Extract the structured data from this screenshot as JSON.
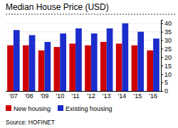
{
  "chart_data": {
    "type": "bar",
    "title": "Median House Price (USD)",
    "categories": [
      "'07",
      "'08",
      "'09",
      "'10",
      "'11",
      "'12",
      "'13",
      "'14",
      "'15",
      "'16"
    ],
    "series": [
      {
        "name": "New housing",
        "color": "#cc0000",
        "values": [
          27,
          27,
          24,
          26,
          28,
          27,
          29,
          28,
          27,
          24
        ]
      },
      {
        "name": "Existing housing",
        "color": "#1a2dcc",
        "values": [
          36,
          33,
          29,
          34,
          37,
          34,
          37,
          40,
          35,
          31
        ]
      }
    ],
    "ylim": [
      0,
      42
    ],
    "yticks": [
      0,
      5,
      10,
      15,
      20,
      25,
      30,
      35,
      40
    ],
    "grid": true,
    "legend": "bottom",
    "annotations": [
      "Source: HOFINET"
    ]
  }
}
